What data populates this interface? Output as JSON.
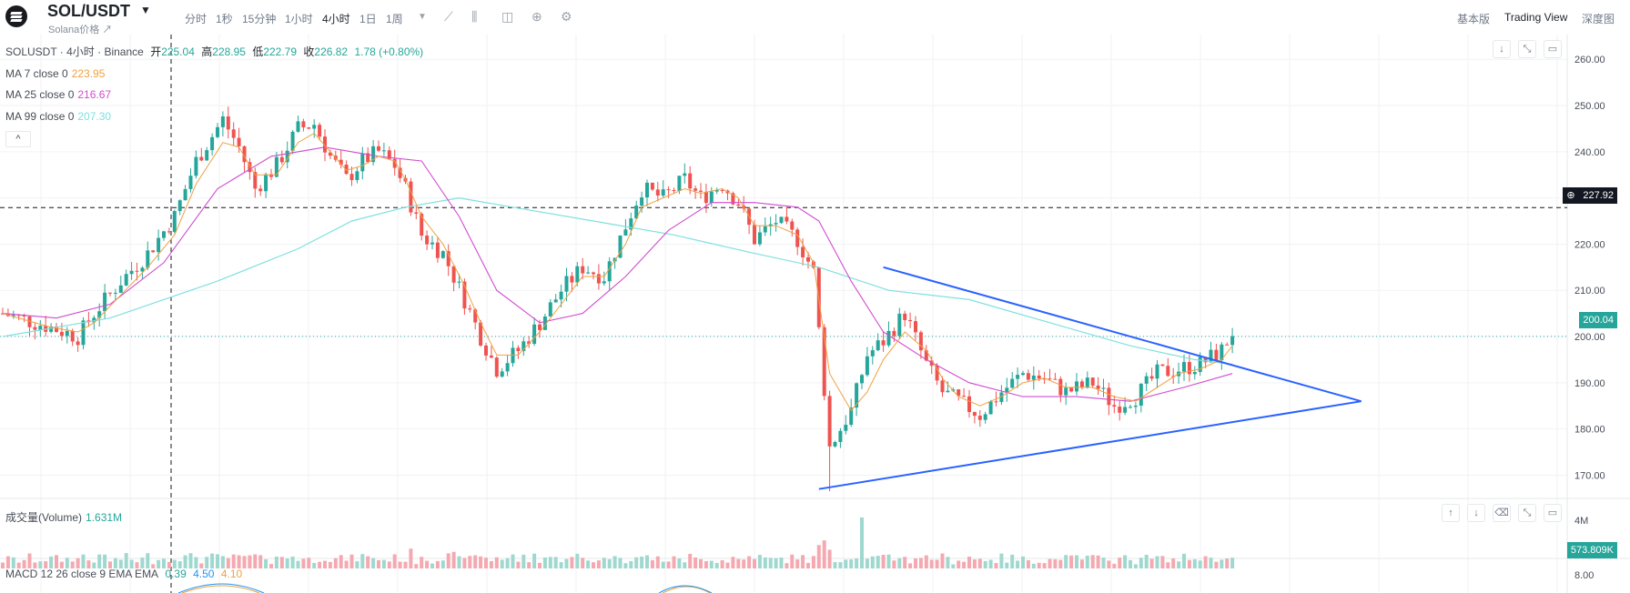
{
  "toolbar": {
    "symbol": "SOL/USDT",
    "subname": "Solana价格 ↗",
    "intervals": [
      "分时",
      "1秒",
      "15分钟",
      "1小时",
      "4小时",
      "1日",
      "1周"
    ],
    "active_interval": "4小时",
    "views": [
      "基本版",
      "Trading View",
      "深度图"
    ],
    "active_view": "Trading View"
  },
  "legend": {
    "title": "SOLUSDT · 4小时 · Binance",
    "open_label": "开",
    "open": "225.04",
    "high_label": "高",
    "high": "228.95",
    "low_label": "低",
    "low": "222.79",
    "close_label": "收",
    "close": "226.82",
    "change": "1.78 (+0.80%)",
    "ma7_label": "MA 7 close 0",
    "ma7": "223.95",
    "ma25_label": "MA 25 close 0",
    "ma25": "216.67",
    "ma99_label": "MA 99 close 0",
    "ma99": "207.30",
    "collapse": "^"
  },
  "volume_legend": {
    "label": "成交量(Volume)",
    "value": "1.631M"
  },
  "macd_legend": {
    "label": "MACD 12 26 close 9 EMA EMA",
    "v1": "0.39",
    "v2": "4.50",
    "v3": "4.10"
  },
  "price_tags": {
    "crosshair": "227.92",
    "last": "200.04",
    "volume_last": "573.809K"
  },
  "colors": {
    "up": "#26a69a",
    "down": "#ef5350",
    "ma7": "#f0a040",
    "ma25": "#d04ccf",
    "ma99": "#7fe0e0",
    "trendline": "#2962ff",
    "volume_up": "#9fd8cf",
    "volume_down": "#f4a9b0"
  },
  "chart_data": {
    "type": "candlestick",
    "y_axis_ticks": [
      260,
      250,
      240,
      230,
      220,
      210,
      200,
      190,
      180,
      170
    ],
    "volume_axis_ticks": [
      "4M"
    ],
    "macd_axis_ticks": [
      "8.00"
    ],
    "crosshair_price": 227.92,
    "last_price": 200.04,
    "price_path": [
      [
        0,
        205
      ],
      [
        9,
        202
      ],
      [
        14,
        200
      ],
      [
        17,
        205
      ],
      [
        22,
        212
      ],
      [
        27,
        218
      ],
      [
        32,
        226
      ],
      [
        36,
        238
      ],
      [
        41,
        247
      ],
      [
        44,
        241
      ],
      [
        47,
        232
      ],
      [
        51,
        237
      ],
      [
        55,
        245
      ],
      [
        58,
        246
      ],
      [
        61,
        239
      ],
      [
        64,
        234
      ],
      [
        67,
        238
      ],
      [
        70,
        240
      ],
      [
        73,
        237
      ],
      [
        75,
        232
      ],
      [
        78,
        222
      ],
      [
        82,
        218
      ],
      [
        86,
        208
      ],
      [
        89,
        200
      ],
      [
        92,
        193
      ],
      [
        96,
        197
      ],
      [
        100,
        203
      ],
      [
        104,
        210
      ],
      [
        108,
        215
      ],
      [
        112,
        213
      ],
      [
        116,
        224
      ],
      [
        119,
        232
      ],
      [
        123,
        230
      ],
      [
        127,
        234
      ],
      [
        130,
        230
      ],
      [
        134,
        233
      ],
      [
        137,
        229
      ],
      [
        140,
        221
      ],
      [
        144,
        225
      ],
      [
        148,
        221
      ],
      [
        151,
        214
      ],
      [
        154,
        176
      ],
      [
        158,
        184
      ],
      [
        161,
        196
      ],
      [
        164,
        199
      ],
      [
        168,
        205
      ],
      [
        172,
        194
      ],
      [
        175,
        188
      ],
      [
        178,
        186
      ],
      [
        182,
        183
      ],
      [
        186,
        188
      ],
      [
        190,
        192
      ],
      [
        194,
        191
      ],
      [
        198,
        188
      ],
      [
        203,
        190
      ],
      [
        207,
        185
      ],
      [
        211,
        187
      ],
      [
        215,
        192
      ],
      [
        219,
        193
      ],
      [
        223,
        194
      ],
      [
        227,
        197
      ],
      [
        229,
        201
      ]
    ],
    "ma7": [
      [
        0,
        205
      ],
      [
        9,
        202
      ],
      [
        14,
        201
      ],
      [
        17,
        203
      ],
      [
        22,
        209
      ],
      [
        27,
        215
      ],
      [
        32,
        222
      ],
      [
        36,
        233
      ],
      [
        41,
        242
      ],
      [
        44,
        241
      ],
      [
        47,
        235
      ],
      [
        51,
        235
      ],
      [
        55,
        242
      ],
      [
        58,
        244
      ],
      [
        61,
        240
      ],
      [
        64,
        236
      ],
      [
        67,
        237
      ],
      [
        70,
        239
      ],
      [
        73,
        238
      ],
      [
        75,
        234
      ],
      [
        78,
        226
      ],
      [
        82,
        220
      ],
      [
        86,
        211
      ],
      [
        89,
        203
      ],
      [
        92,
        196
      ],
      [
        96,
        196
      ],
      [
        100,
        201
      ],
      [
        104,
        207
      ],
      [
        108,
        213
      ],
      [
        112,
        213
      ],
      [
        116,
        220
      ],
      [
        119,
        228
      ],
      [
        123,
        230
      ],
      [
        127,
        232
      ],
      [
        130,
        231
      ],
      [
        134,
        232
      ],
      [
        137,
        230
      ],
      [
        140,
        224
      ],
      [
        144,
        224
      ],
      [
        148,
        222
      ],
      [
        151,
        216
      ],
      [
        154,
        192
      ],
      [
        158,
        184
      ],
      [
        161,
        188
      ],
      [
        164,
        195
      ],
      [
        168,
        201
      ],
      [
        172,
        197
      ],
      [
        175,
        191
      ],
      [
        178,
        187
      ],
      [
        182,
        185
      ],
      [
        186,
        187
      ],
      [
        190,
        190
      ],
      [
        194,
        191
      ],
      [
        198,
        189
      ],
      [
        203,
        189
      ],
      [
        207,
        187
      ],
      [
        211,
        186
      ],
      [
        215,
        189
      ],
      [
        219,
        192
      ],
      [
        223,
        193
      ],
      [
        227,
        195
      ],
      [
        229,
        198
      ]
    ],
    "ma25": [
      [
        0,
        205
      ],
      [
        10,
        204
      ],
      [
        20,
        207
      ],
      [
        30,
        216
      ],
      [
        40,
        232
      ],
      [
        50,
        239
      ],
      [
        60,
        241
      ],
      [
        70,
        239
      ],
      [
        78,
        238
      ],
      [
        85,
        226
      ],
      [
        92,
        210
      ],
      [
        100,
        203
      ],
      [
        108,
        205
      ],
      [
        116,
        213
      ],
      [
        124,
        223
      ],
      [
        132,
        229
      ],
      [
        140,
        229
      ],
      [
        148,
        228
      ],
      [
        152,
        225
      ],
      [
        158,
        212
      ],
      [
        164,
        201
      ],
      [
        172,
        195
      ],
      [
        180,
        190
      ],
      [
        190,
        187
      ],
      [
        200,
        187
      ],
      [
        210,
        186
      ],
      [
        220,
        189
      ],
      [
        229,
        192
      ]
    ],
    "ma99": [
      [
        0,
        200
      ],
      [
        20,
        204
      ],
      [
        40,
        212
      ],
      [
        55,
        219
      ],
      [
        65,
        225
      ],
      [
        75,
        228
      ],
      [
        85,
        230
      ],
      [
        95,
        228
      ],
      [
        110,
        225
      ],
      [
        125,
        222
      ],
      [
        140,
        218
      ],
      [
        152,
        215
      ],
      [
        165,
        210
      ],
      [
        180,
        208
      ],
      [
        195,
        203
      ],
      [
        210,
        198
      ],
      [
        222,
        195
      ],
      [
        229,
        194
      ]
    ],
    "trendline_upper": [
      [
        164,
        215
      ],
      [
        253,
        186
      ]
    ],
    "trendline_lower": [
      [
        152,
        167
      ],
      [
        253,
        186
      ]
    ],
    "volume_spike_index": 160
  }
}
